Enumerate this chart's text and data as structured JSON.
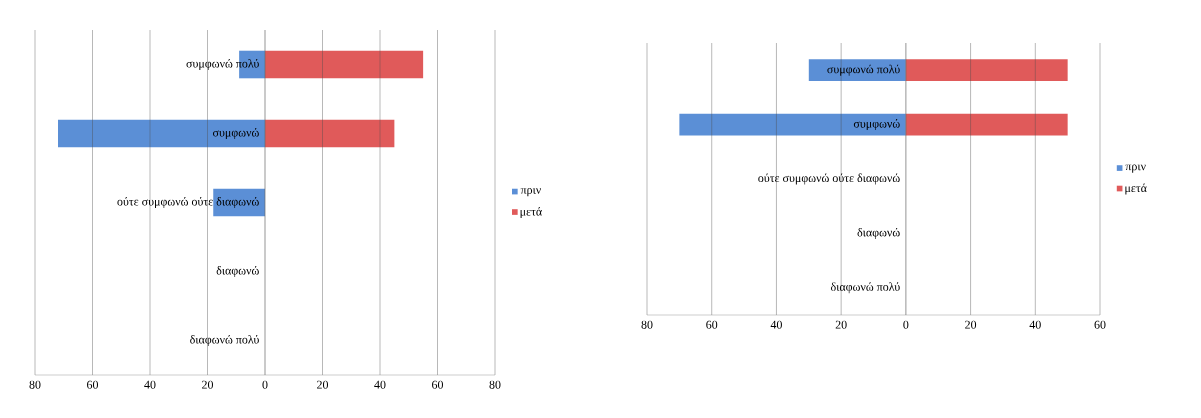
{
  "chart_data": [
    {
      "type": "bar",
      "orientation": "horizontal",
      "categories": [
        "συμφωνώ πολύ",
        "συμφωνώ",
        "ούτε συμφωνώ ούτε διαφωνώ",
        "διαφωνώ",
        "διαφωνώ πολύ"
      ],
      "series": [
        {
          "name": "πριν",
          "color": "#5b8fd6",
          "values": [
            -9,
            -72,
            -18,
            0,
            0
          ]
        },
        {
          "name": "μετά",
          "color": "#e05a5a",
          "values": [
            55,
            45,
            0,
            0,
            0
          ]
        }
      ],
      "xlim": [
        -80,
        80
      ],
      "xticks": [
        {
          "value": -80,
          "label": "80"
        },
        {
          "value": -60,
          "label": "60"
        },
        {
          "value": -40,
          "label": "40"
        },
        {
          "value": -20,
          "label": "20"
        },
        0,
        20,
        40,
        60,
        80
      ],
      "grid": "x",
      "legend": "right"
    },
    {
      "type": "bar",
      "orientation": "horizontal",
      "categories": [
        "συμφωνώ πολύ",
        "συμφωνώ",
        "ούτε συμφωνώ ούτε διαφωνώ",
        "διαφωνώ",
        "διαφωνώ πολύ"
      ],
      "series": [
        {
          "name": "πριν",
          "color": "#5b8fd6",
          "values": [
            -30,
            -70,
            0,
            0,
            0
          ]
        },
        {
          "name": "μετά",
          "color": "#e05a5a",
          "values": [
            50,
            50,
            0,
            0,
            0
          ]
        }
      ],
      "xlim": [
        -80,
        60
      ],
      "xticks": [
        {
          "value": -80,
          "label": "80"
        },
        {
          "value": -60,
          "label": "60"
        },
        {
          "value": -40,
          "label": "40"
        },
        {
          "value": -20,
          "label": "20"
        },
        0,
        20,
        40,
        60
      ],
      "grid": "x",
      "legend": "right"
    }
  ]
}
